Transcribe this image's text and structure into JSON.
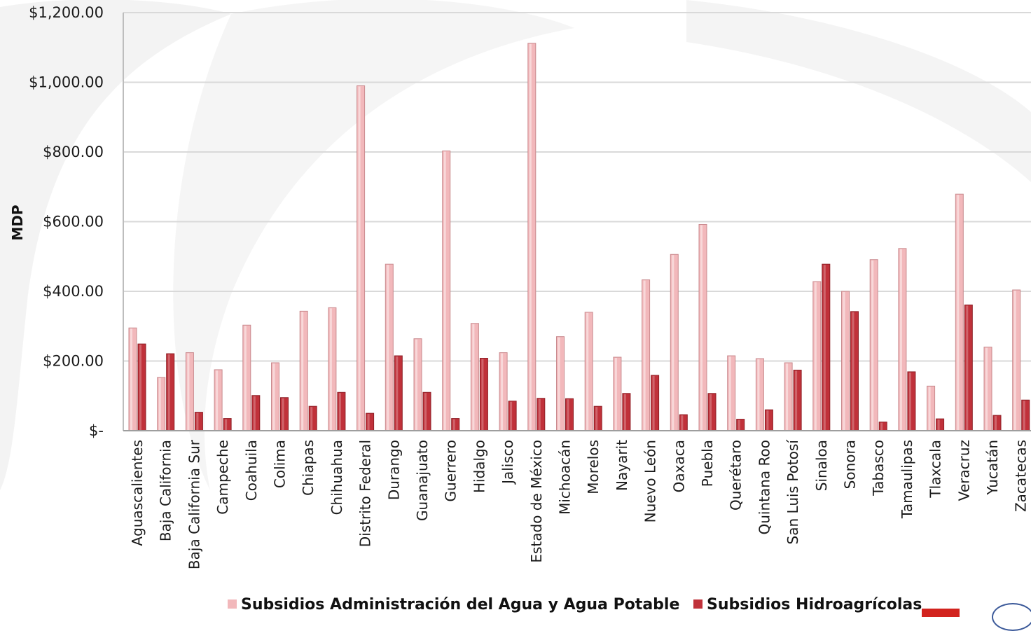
{
  "chart_data": {
    "type": "bar",
    "ylabel": "MDP",
    "xlabel": "",
    "ylim": [
      0,
      1200
    ],
    "yticks": [
      {
        "value": 0,
        "label": "$-"
      },
      {
        "value": 200,
        "label": "$200.00"
      },
      {
        "value": 400,
        "label": "$400.00"
      },
      {
        "value": 600,
        "label": "$600.00"
      },
      {
        "value": 800,
        "label": "$800.00"
      },
      {
        "value": 1000,
        "label": "$1,000.00"
      },
      {
        "value": 1200,
        "label": "$1,200.00"
      }
    ],
    "grid": true,
    "legend_position": "bottom",
    "categories": [
      "Aguascalientes",
      "Baja California",
      "Baja California Sur",
      "Campeche",
      "Coahuila",
      "Colima",
      "Chiapas",
      "Chihuahua",
      "Distrito Federal",
      "Durango",
      "Guanajuato",
      "Guerrero",
      "Hidalgo",
      "Jalisco",
      "Estado de México",
      "Michoacán",
      "Morelos",
      "Nayarit",
      "Nuevo León",
      "Oaxaca",
      "Puebla",
      "Querétaro",
      "Quintana Roo",
      "San Luis Potosí",
      "Sinaloa",
      "Sonora",
      "Tabasco",
      "Tamaulipas",
      "Tlaxcala",
      "Veracruz",
      "Yucatán",
      "Zacatecas"
    ],
    "series": [
      {
        "name": "Subsidios Administración del Agua y Agua Potable",
        "color": "#f2b8bb",
        "values": [
          295,
          153,
          224,
          175,
          303,
          195,
          343,
          353,
          990,
          478,
          264,
          803,
          308,
          224,
          1112,
          270,
          340,
          211,
          433,
          506,
          592,
          215,
          207,
          195,
          428,
          400,
          491,
          523,
          128,
          679,
          240,
          404
        ]
      },
      {
        "name": "Subsidios Hidroagrícolas",
        "color": "#c0313a",
        "values": [
          249,
          221,
          53,
          35,
          101,
          95,
          70,
          110,
          50,
          215,
          110,
          35,
          208,
          85,
          93,
          92,
          70,
          107,
          159,
          46,
          107,
          33,
          60,
          174,
          478,
          342,
          25,
          169,
          34,
          361,
          44,
          88
        ]
      }
    ]
  },
  "logos": [
    "red-brand-logo",
    "global-seal-logo"
  ]
}
